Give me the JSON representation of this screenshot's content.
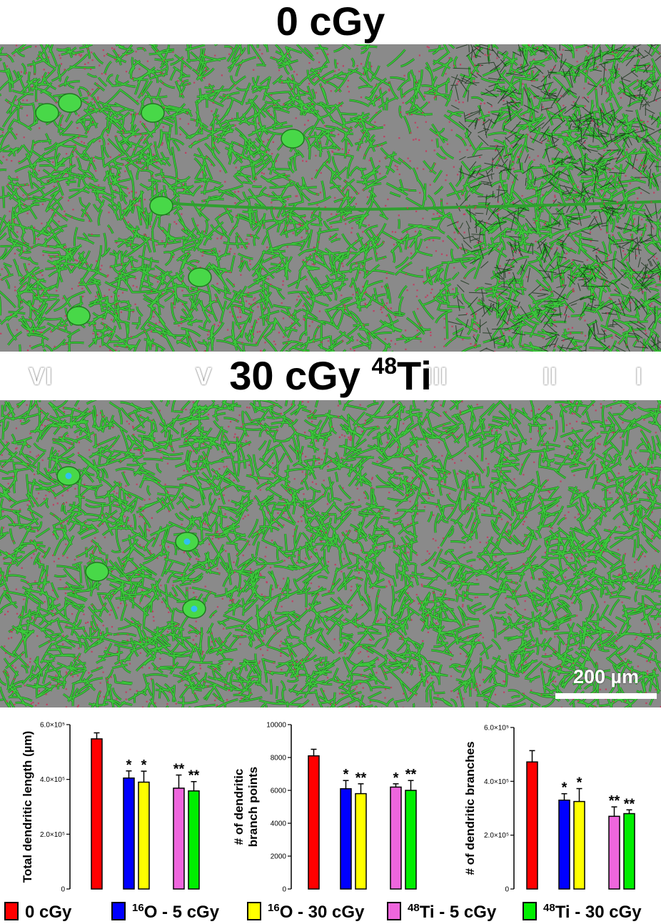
{
  "figure": {
    "top_title": "0 cGy",
    "bottom_title_main": "30 cGy ",
    "bottom_title_sup": "48",
    "bottom_title_tail": "Ti",
    "layers": [
      "VI",
      "V",
      "III",
      "II",
      "I"
    ],
    "scale_bar_label": "200 µm"
  },
  "colors": {
    "neuron_green": "#3cc83c",
    "background_gray": "#8a8a8a",
    "spine_red": "#c8325a",
    "0_cGy": "#ff0000",
    "16O_5_cGy": "#0000ff",
    "16O_30_cGy": "#ffff00",
    "48Ti_5_cGy": "#ee66dd",
    "48Ti_30_cGy": "#00ee00"
  },
  "legend": [
    {
      "sup": "",
      "label": "0 cGy",
      "color": "#ff0000"
    },
    {
      "sup": "16",
      "label": "O - 5 cGy",
      "color": "#0000ff"
    },
    {
      "sup": "16",
      "label": "O - 30 cGy",
      "color": "#ffff00"
    },
    {
      "sup": "48",
      "label": "Ti - 5 cGy",
      "color": "#ee66dd"
    },
    {
      "sup": "48",
      "label": "Ti - 30 cGy",
      "color": "#00ee00"
    }
  ],
  "chart_data": [
    {
      "type": "bar",
      "ylabel": "Total dendritic length (µm)",
      "ylim": [
        0,
        600000
      ],
      "yticks": [
        0,
        200000,
        400000,
        600000
      ],
      "yticklabels": [
        "0",
        "2.0×10⁵",
        "4.0×10⁵",
        "6.0×10⁵"
      ],
      "categories": [
        "0 cGy",
        "16O - 5 cGy",
        "16O - 30 cGy",
        "48Ti - 5 cGy",
        "48Ti - 30 cGy"
      ],
      "values": [
        548000,
        405000,
        390000,
        368000,
        358000
      ],
      "errors": [
        22000,
        26000,
        40000,
        48000,
        34000
      ],
      "significance": [
        "",
        "*",
        "*",
        "**",
        "**"
      ]
    },
    {
      "type": "bar",
      "ylabel": "# of dendritic branch points",
      "ylim": [
        0,
        10000
      ],
      "yticks": [
        0,
        2000,
        4000,
        6000,
        8000,
        10000
      ],
      "yticklabels": [
        "0",
        "2000",
        "4000",
        "6000",
        "8000",
        "10000"
      ],
      "categories": [
        "0 cGy",
        "16O - 5 cGy",
        "16O - 30 cGy",
        "48Ti - 5 cGy",
        "48Ti - 30 cGy"
      ],
      "values": [
        8100,
        6100,
        5800,
        6200,
        6000
      ],
      "errors": [
        400,
        500,
        600,
        200,
        600
      ],
      "significance": [
        "",
        "*",
        "**",
        "*",
        "**"
      ]
    },
    {
      "type": "bar",
      "ylabel": "# of dendritic branches",
      "ylim": [
        0,
        600000
      ],
      "yticks": [
        0,
        200000,
        400000,
        600000
      ],
      "yticklabels": [
        "0",
        "2.0×10⁵",
        "4.0×10⁵",
        "6.0×10⁵"
      ],
      "categories": [
        "0 cGy",
        "16O - 5 cGy",
        "16O - 30 cGy",
        "48Ti - 5 cGy",
        "48Ti - 30 cGy"
      ],
      "values": [
        472000,
        330000,
        325000,
        270000,
        280000
      ],
      "errors": [
        42000,
        24000,
        48000,
        35000,
        14000
      ],
      "significance": [
        "",
        "*",
        "*",
        "**",
        "**"
      ]
    }
  ]
}
